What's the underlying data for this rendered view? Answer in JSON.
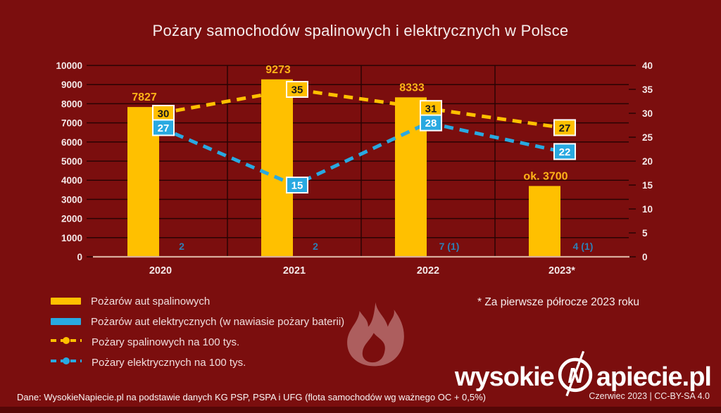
{
  "title": "Pożary samochodów spalinowych i elektrycznych w Polsce",
  "chart_data": {
    "type": "bar",
    "subtype": "combo-bar-and-dashed-lines-dual-axis",
    "title": "Pożary samochodów spalinowych i elektrycznych w Polsce",
    "categories": [
      "2020",
      "2021",
      "2022",
      "2023*"
    ],
    "series": [
      {
        "name": "Pożarów aut spalinowych",
        "type": "bar",
        "axis": "left",
        "color": "#FFC000",
        "values": [
          7827,
          9273,
          8333,
          3700
        ],
        "value_labels": [
          "7827",
          "9273",
          "8333",
          "ok. 3700"
        ]
      },
      {
        "name": "Pożarów aut elektrycznych (w nawiasie pożary baterii)",
        "type": "bar",
        "axis": "left",
        "color": "#29A9E1",
        "values": [
          2,
          2,
          7,
          4
        ],
        "value_labels": [
          "2",
          "2",
          "7 (1)",
          "4 (1)"
        ]
      },
      {
        "name": "Pożary spalinowych na 100 tys.",
        "type": "dashed-line",
        "axis": "right",
        "color": "#FFC000",
        "values": [
          30,
          35,
          31,
          27
        ],
        "label_text_color": "#1A1A1A"
      },
      {
        "name": "Pożary elektrycznych na 100 tys.",
        "type": "dashed-line",
        "axis": "right",
        "color": "#29A9E1",
        "values": [
          27,
          15,
          28,
          22
        ],
        "label_text_color": "#FFFFFF"
      }
    ],
    "left_axis": {
      "min": 0,
      "max": 10000,
      "step": 1000
    },
    "right_axis": {
      "min": 0,
      "max": 40,
      "step": 5
    },
    "grid": true,
    "legend_position": "bottom-left"
  },
  "legend": {
    "items": [
      {
        "label": "Pożarów aut spalinowych",
        "marker": "bar",
        "color": "#FFC000"
      },
      {
        "label": "Pożarów aut elektrycznych (w nawiasie pożary baterii)",
        "marker": "bar",
        "color": "#29A9E1"
      },
      {
        "label": "Pożary spalinowych na 100 tys.",
        "marker": "dashed-line",
        "color": "#FFC000"
      },
      {
        "label": "Pożary elektrycznych na 100 tys.",
        "marker": "dashed-line",
        "color": "#29A9E1"
      }
    ]
  },
  "note": "* Za pierwsze półrocze 2023 roku",
  "source": "Dane: WysokieNapiecie.pl na podstawie danych KG PSP, PSPA i UFG (flota samochodów wg ważnego OC + 0,5%)",
  "footer": {
    "date_license": "Czerwiec 2023  |  CC-BY-SA 4.0"
  },
  "logo": {
    "text_left": "wysokie",
    "glyph": "lightning-n-icon",
    "text_right": "apiecie.pl"
  },
  "colors": {
    "background": "#7B0E0E",
    "grid": "#2A0303",
    "baseline": "#D9AC9C",
    "bar_combustion": "#FFC000",
    "bar_electric": "#29A9E1",
    "bar_value_label": "#FFB318",
    "electric_count_label": "#2E7FB5",
    "text_primary": "#F4E9E9",
    "watermark_flame": "#B56A6A",
    "logo": "#FFFFFF"
  }
}
